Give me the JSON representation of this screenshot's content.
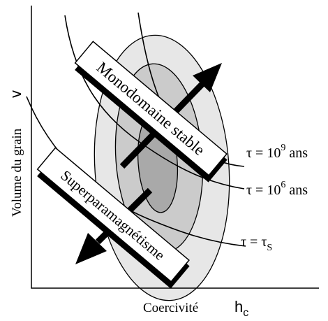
{
  "axes": {
    "x_label": "Coercivité",
    "x_symbol": "h",
    "x_symbol_sub": "c",
    "y_label": "Volume du grain",
    "y_symbol": "v"
  },
  "regions": {
    "stable_label": "Monodomaine stable",
    "superpara_label": "Superparamagnétisme"
  },
  "curves": [
    {
      "tau": "τ",
      "eq": " = 10",
      "exp": "9",
      "unit": " ans"
    },
    {
      "tau": "τ",
      "eq": " = 10",
      "exp": "6",
      "unit": " ans"
    },
    {
      "tau": "τ",
      "eq": " = τ",
      "sub": "S"
    }
  ],
  "colors": {
    "outer_ellipse": "#e7e7e7",
    "middle_ellipse": "#cbcbcb",
    "inner_ellipse": "#a9a9a9",
    "ink": "#000000",
    "label_box": "#ffffff"
  }
}
